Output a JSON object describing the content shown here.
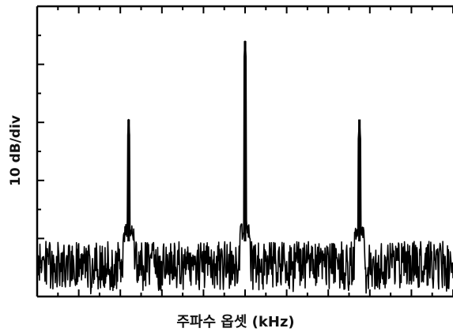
{
  "chart_data": {
    "type": "line",
    "title": "",
    "xlabel": "주파수 옵셋 (kHz)",
    "ylabel": "10 dB/div",
    "x_tick_labels_shown": false,
    "y_tick_labels_shown": false,
    "y_divisions": 5,
    "ylim": [
      0,
      5
    ],
    "xlim": [
      -1,
      1
    ],
    "grid": false,
    "noise_floor_div": [
      0.1,
      0.95
    ],
    "series": [
      {
        "peaks": [
          {
            "x": -0.56,
            "level_div": 3.05
          },
          {
            "x": 0.0,
            "level_div": 4.4
          },
          {
            "x": 0.55,
            "level_div": 3.05
          }
        ]
      }
    ],
    "colors": {
      "trace": "#000000",
      "axes": "#000000",
      "background": "#ffffff"
    }
  }
}
